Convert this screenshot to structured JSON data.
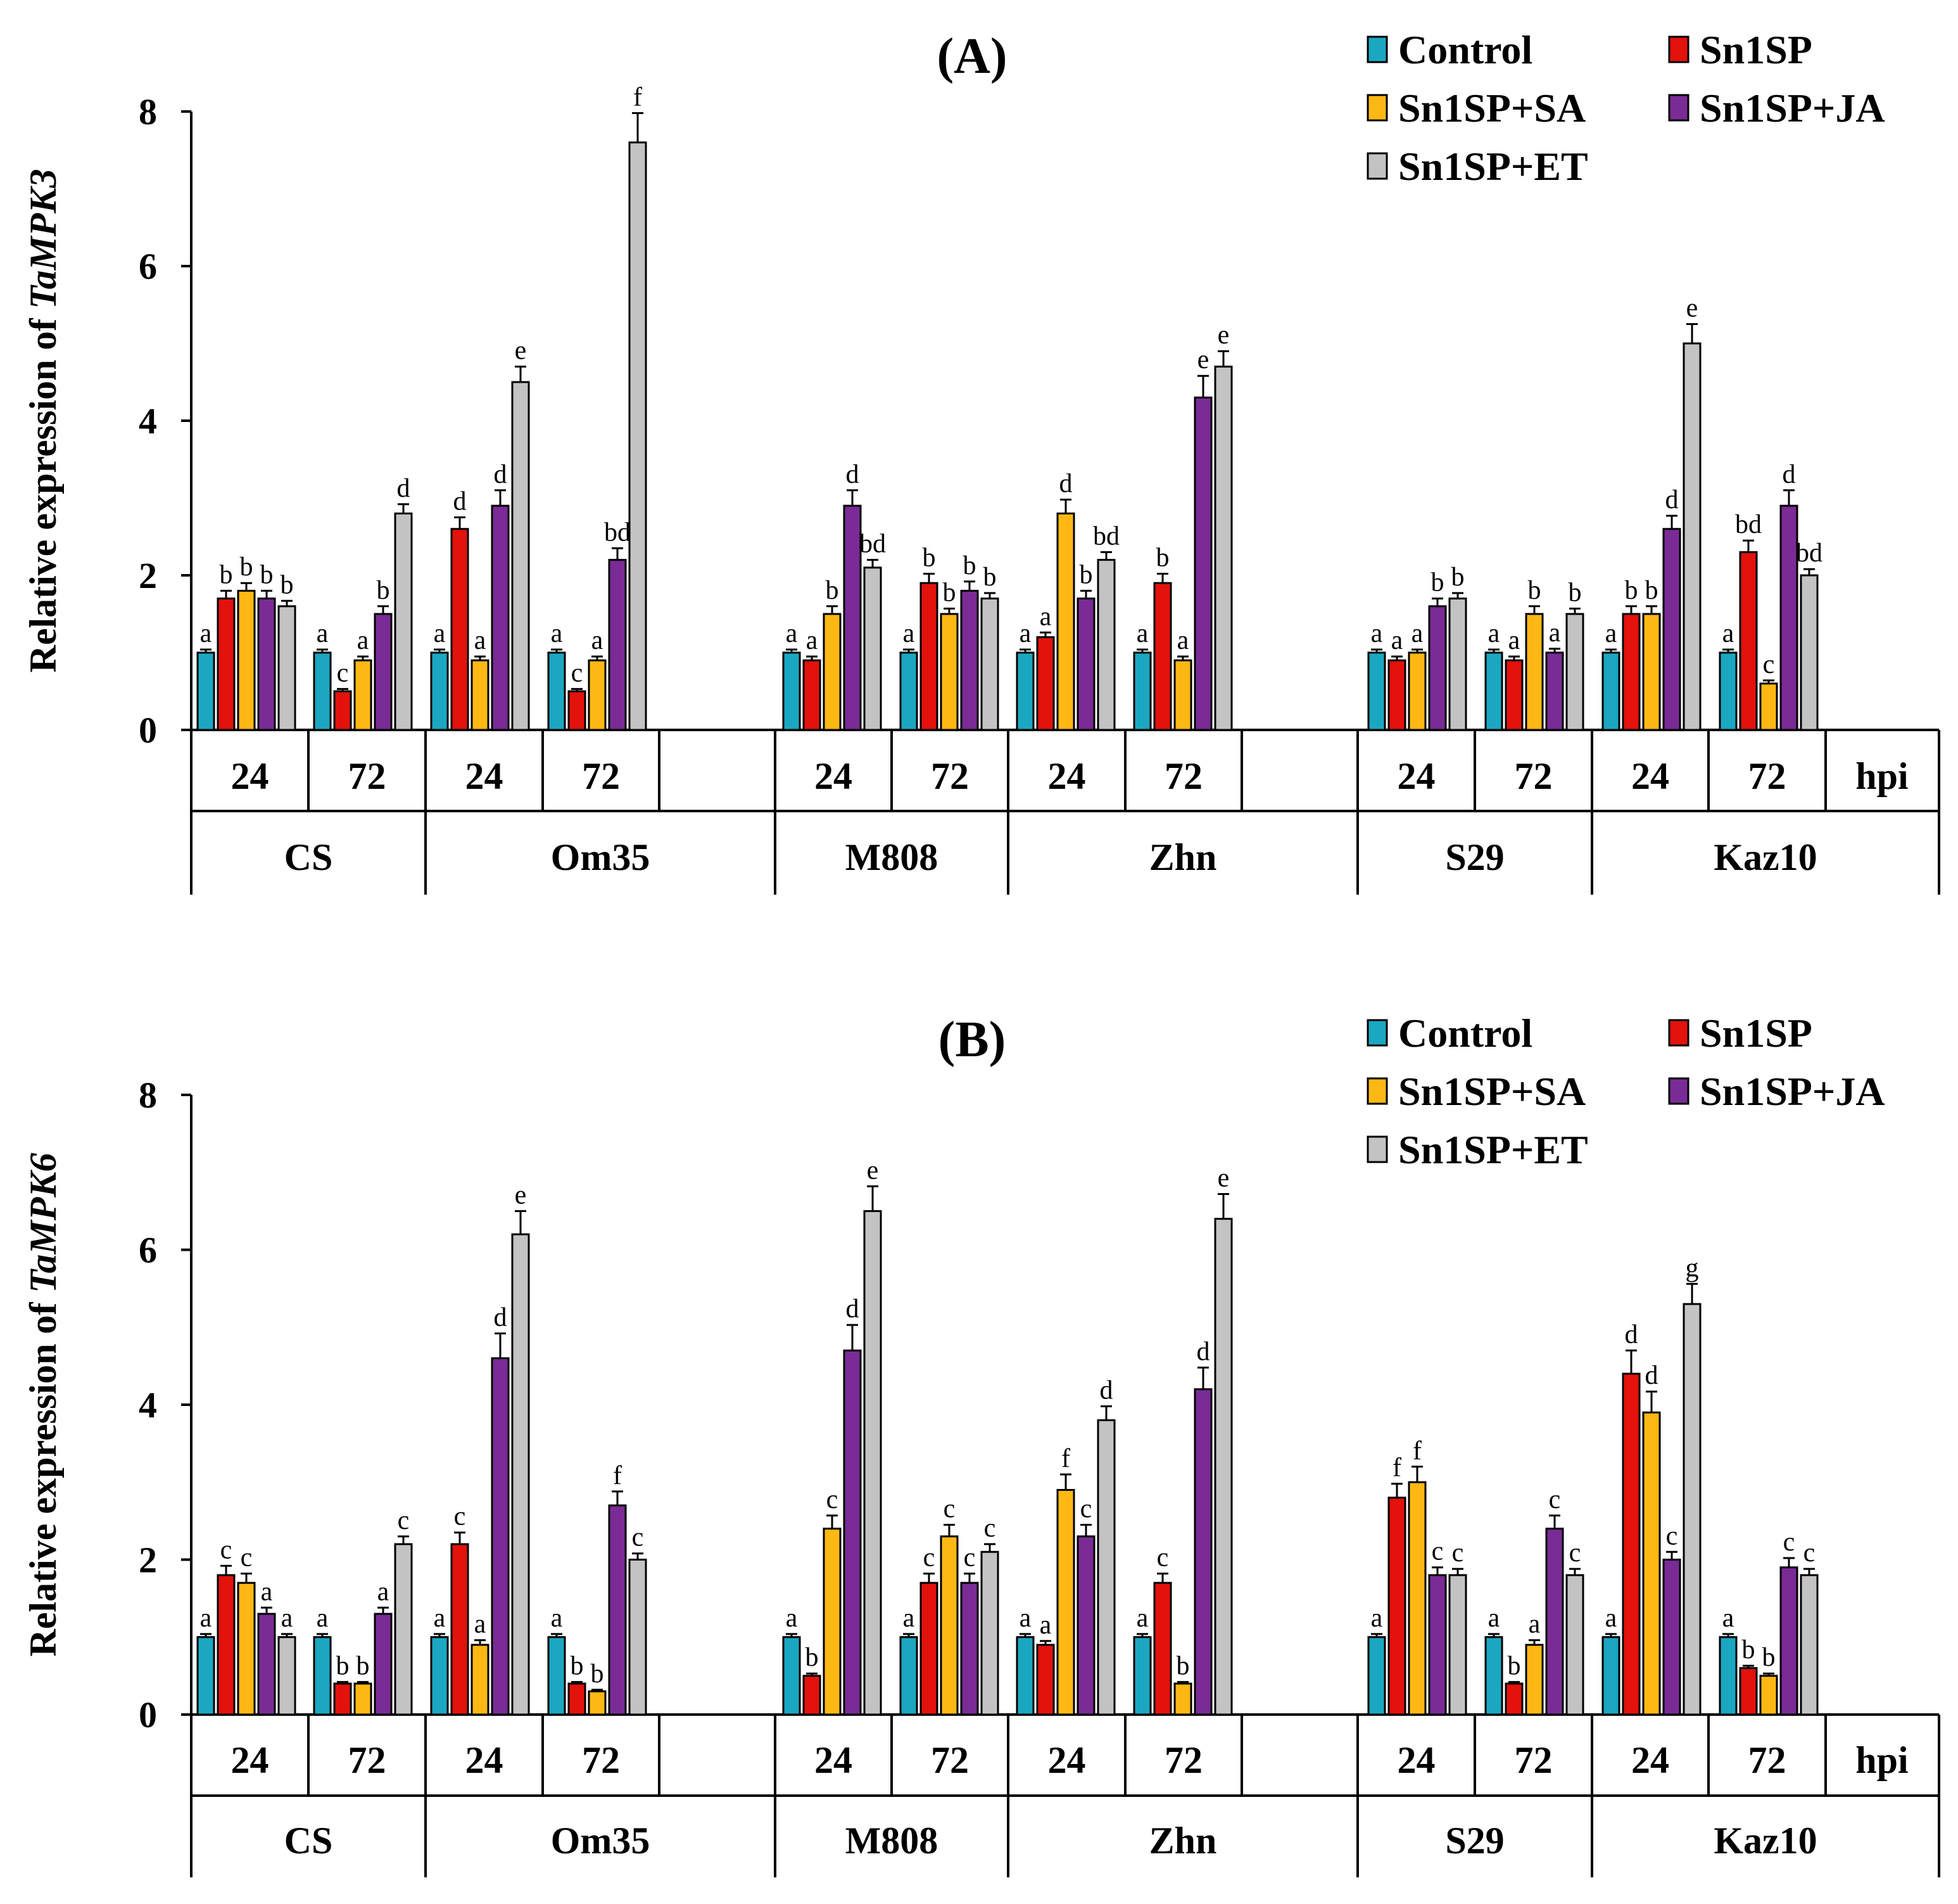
{
  "colors": {
    "Control": "#1BA7C2",
    "Sn1SP": "#E3120B",
    "Sn1SP+SA": "#FDB813",
    "Sn1SP+JA": "#7A2B96",
    "Sn1SP+ET": "#C3C3C3"
  },
  "chart_data": [
    {
      "type": "bar",
      "panel_label": "(A)",
      "ylabel_prefix": "Relative expression of",
      "gene": "TaMPK3",
      "ylim": [
        0,
        8
      ],
      "yticks": [
        "0",
        "2",
        "4",
        "6",
        "8"
      ],
      "series_names": [
        "Control",
        "Sn1SP",
        "Sn1SP+SA",
        "Sn1SP+JA",
        "Sn1SP+ET"
      ],
      "hpi_label": "hpi",
      "cultivars": [
        "CS",
        "Om35",
        "M808",
        "Zhn",
        "S29",
        "Kaz10"
      ],
      "groups": [
        {
          "cultivar": "CS",
          "hpi": "24",
          "values": [
            1.0,
            1.7,
            1.8,
            1.7,
            1.6
          ],
          "errors": [
            0.04,
            0.1,
            0.1,
            0.1,
            0.07
          ],
          "letters": [
            "a",
            "b",
            "b",
            "b",
            "b"
          ]
        },
        {
          "cultivar": "CS",
          "hpi": "72",
          "values": [
            1.0,
            0.5,
            0.9,
            1.5,
            2.8
          ],
          "errors": [
            0.04,
            0.03,
            0.05,
            0.1,
            0.12
          ],
          "letters": [
            "a",
            "c",
            "a",
            "b",
            "d"
          ]
        },
        {
          "cultivar": "Om35",
          "hpi": "24",
          "values": [
            1.0,
            2.6,
            0.9,
            2.9,
            4.5
          ],
          "errors": [
            0.04,
            0.15,
            0.05,
            0.2,
            0.2
          ],
          "letters": [
            "a",
            "d",
            "a",
            "d",
            "e"
          ]
        },
        {
          "cultivar": "Om35",
          "hpi": "72",
          "values": [
            1.0,
            0.5,
            0.9,
            2.2,
            7.6
          ],
          "errors": [
            0.04,
            0.03,
            0.05,
            0.15,
            0.38
          ],
          "letters": [
            "a",
            "c",
            "a",
            "bd",
            "f"
          ]
        },
        {
          "cultivar": "M808",
          "hpi": "24",
          "values": [
            1.0,
            0.9,
            1.5,
            2.9,
            2.1
          ],
          "errors": [
            0.04,
            0.05,
            0.1,
            0.2,
            0.1
          ],
          "letters": [
            "a",
            "a",
            "b",
            "d",
            "bd"
          ]
        },
        {
          "cultivar": "M808",
          "hpi": "72",
          "values": [
            1.0,
            1.9,
            1.5,
            1.8,
            1.7
          ],
          "errors": [
            0.04,
            0.12,
            0.07,
            0.12,
            0.07
          ],
          "letters": [
            "a",
            "b",
            "b",
            "b",
            "b"
          ]
        },
        {
          "cultivar": "Zhn",
          "hpi": "24",
          "values": [
            1.0,
            1.2,
            2.8,
            1.7,
            2.2
          ],
          "errors": [
            0.04,
            0.06,
            0.18,
            0.1,
            0.1
          ],
          "letters": [
            "a",
            "a",
            "d",
            "b",
            "bd"
          ]
        },
        {
          "cultivar": "Zhn",
          "hpi": "72",
          "values": [
            1.0,
            1.9,
            0.9,
            4.3,
            4.7
          ],
          "errors": [
            0.04,
            0.12,
            0.05,
            0.28,
            0.2
          ],
          "letters": [
            "a",
            "b",
            "a",
            "e",
            "e"
          ]
        },
        {
          "cultivar": "S29",
          "hpi": "24",
          "values": [
            1.0,
            0.9,
            1.0,
            1.6,
            1.7
          ],
          "errors": [
            0.04,
            0.05,
            0.04,
            0.1,
            0.07
          ],
          "letters": [
            "a",
            "a",
            "a",
            "b",
            "b"
          ]
        },
        {
          "cultivar": "S29",
          "hpi": "72",
          "values": [
            1.0,
            0.9,
            1.5,
            1.0,
            1.5
          ],
          "errors": [
            0.04,
            0.05,
            0.1,
            0.05,
            0.07
          ],
          "letters": [
            "a",
            "a",
            "b",
            "a",
            "b"
          ]
        },
        {
          "cultivar": "Kaz10",
          "hpi": "24",
          "values": [
            1.0,
            1.5,
            1.5,
            2.6,
            5.0
          ],
          "errors": [
            0.04,
            0.1,
            0.1,
            0.17,
            0.25
          ],
          "letters": [
            "a",
            "b",
            "b",
            "d",
            "e"
          ]
        },
        {
          "cultivar": "Kaz10",
          "hpi": "72",
          "values": [
            1.0,
            2.3,
            0.6,
            2.9,
            2.0
          ],
          "errors": [
            0.04,
            0.15,
            0.04,
            0.2,
            0.08
          ],
          "letters": [
            "a",
            "bd",
            "c",
            "d",
            "bd"
          ]
        }
      ]
    },
    {
      "type": "bar",
      "panel_label": "(B)",
      "ylabel_prefix": "Relative expression of",
      "gene": "TaMPK6",
      "ylim": [
        0,
        8
      ],
      "yticks": [
        "0",
        "2",
        "4",
        "6",
        "8"
      ],
      "series_names": [
        "Control",
        "Sn1SP",
        "Sn1SP+SA",
        "Sn1SP+JA",
        "Sn1SP+ET"
      ],
      "hpi_label": "hpi",
      "cultivars": [
        "CS",
        "Om35",
        "M808",
        "Zhn",
        "S29",
        "Kaz10"
      ],
      "groups": [
        {
          "cultivar": "CS",
          "hpi": "24",
          "values": [
            1.0,
            1.8,
            1.7,
            1.3,
            1.0
          ],
          "errors": [
            0.04,
            0.12,
            0.12,
            0.08,
            0.04
          ],
          "letters": [
            "a",
            "c",
            "c",
            "a",
            "a"
          ]
        },
        {
          "cultivar": "CS",
          "hpi": "72",
          "values": [
            1.0,
            0.4,
            0.4,
            1.3,
            2.2
          ],
          "errors": [
            0.04,
            0.02,
            0.02,
            0.08,
            0.1
          ],
          "letters": [
            "a",
            "b",
            "b",
            "a",
            "c"
          ]
        },
        {
          "cultivar": "Om35",
          "hpi": "24",
          "values": [
            1.0,
            2.2,
            0.9,
            4.6,
            6.2
          ],
          "errors": [
            0.04,
            0.15,
            0.06,
            0.32,
            0.3
          ],
          "letters": [
            "a",
            "c",
            "a",
            "d",
            "e"
          ]
        },
        {
          "cultivar": "Om35",
          "hpi": "72",
          "values": [
            1.0,
            0.4,
            0.3,
            2.7,
            2.0
          ],
          "errors": [
            0.04,
            0.02,
            0.02,
            0.18,
            0.08
          ],
          "letters": [
            "a",
            "b",
            "b",
            "f",
            "c"
          ]
        },
        {
          "cultivar": "M808",
          "hpi": "24",
          "values": [
            1.0,
            0.5,
            2.4,
            4.7,
            6.5
          ],
          "errors": [
            0.04,
            0.03,
            0.17,
            0.33,
            0.32
          ],
          "letters": [
            "a",
            "b",
            "c",
            "d",
            "e"
          ]
        },
        {
          "cultivar": "M808",
          "hpi": "72",
          "values": [
            1.0,
            1.7,
            2.3,
            1.7,
            2.1
          ],
          "errors": [
            0.04,
            0.12,
            0.15,
            0.12,
            0.1
          ],
          "letters": [
            "a",
            "c",
            "c",
            "c",
            "c"
          ]
        },
        {
          "cultivar": "Zhn",
          "hpi": "24",
          "values": [
            1.0,
            0.9,
            2.9,
            2.3,
            3.8
          ],
          "errors": [
            0.04,
            0.05,
            0.2,
            0.15,
            0.18
          ],
          "letters": [
            "a",
            "a",
            "f",
            "c",
            "d"
          ]
        },
        {
          "cultivar": "Zhn",
          "hpi": "72",
          "values": [
            1.0,
            1.7,
            0.4,
            4.2,
            6.4
          ],
          "errors": [
            0.04,
            0.12,
            0.02,
            0.28,
            0.32
          ],
          "letters": [
            "a",
            "c",
            "b",
            "d",
            "e"
          ]
        },
        {
          "cultivar": "S29",
          "hpi": "24",
          "values": [
            1.0,
            2.8,
            3.0,
            1.8,
            1.8
          ],
          "errors": [
            0.04,
            0.18,
            0.2,
            0.1,
            0.08
          ],
          "letters": [
            "a",
            "f",
            "f",
            "c",
            "c"
          ]
        },
        {
          "cultivar": "S29",
          "hpi": "72",
          "values": [
            1.0,
            0.4,
            0.9,
            2.4,
            1.8
          ],
          "errors": [
            0.04,
            0.02,
            0.06,
            0.17,
            0.08
          ],
          "letters": [
            "a",
            "b",
            "a",
            "c",
            "c"
          ]
        },
        {
          "cultivar": "Kaz10",
          "hpi": "24",
          "values": [
            1.0,
            4.4,
            3.9,
            2.0,
            5.3
          ],
          "errors": [
            0.04,
            0.3,
            0.27,
            0.1,
            0.26
          ],
          "letters": [
            "a",
            "d",
            "d",
            "c",
            "g"
          ]
        },
        {
          "cultivar": "Kaz10",
          "hpi": "72",
          "values": [
            1.0,
            0.6,
            0.5,
            1.9,
            1.8
          ],
          "errors": [
            0.04,
            0.03,
            0.03,
            0.12,
            0.08
          ],
          "letters": [
            "a",
            "b",
            "b",
            "c",
            "c"
          ]
        }
      ]
    }
  ]
}
